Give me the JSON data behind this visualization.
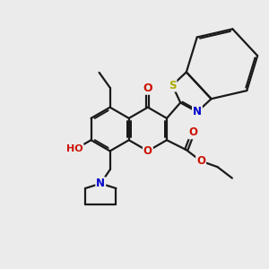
{
  "background_color": "#ebebeb",
  "bond_color": "#1a1a1a",
  "lw": 1.6,
  "atom_colors": {
    "O": "#cc1100",
    "N": "#0000cc",
    "S": "#aaaa00",
    "C": "#1a1a1a"
  },
  "fs": 8.5,
  "figsize": [
    3.0,
    3.0
  ],
  "dpi": 100
}
